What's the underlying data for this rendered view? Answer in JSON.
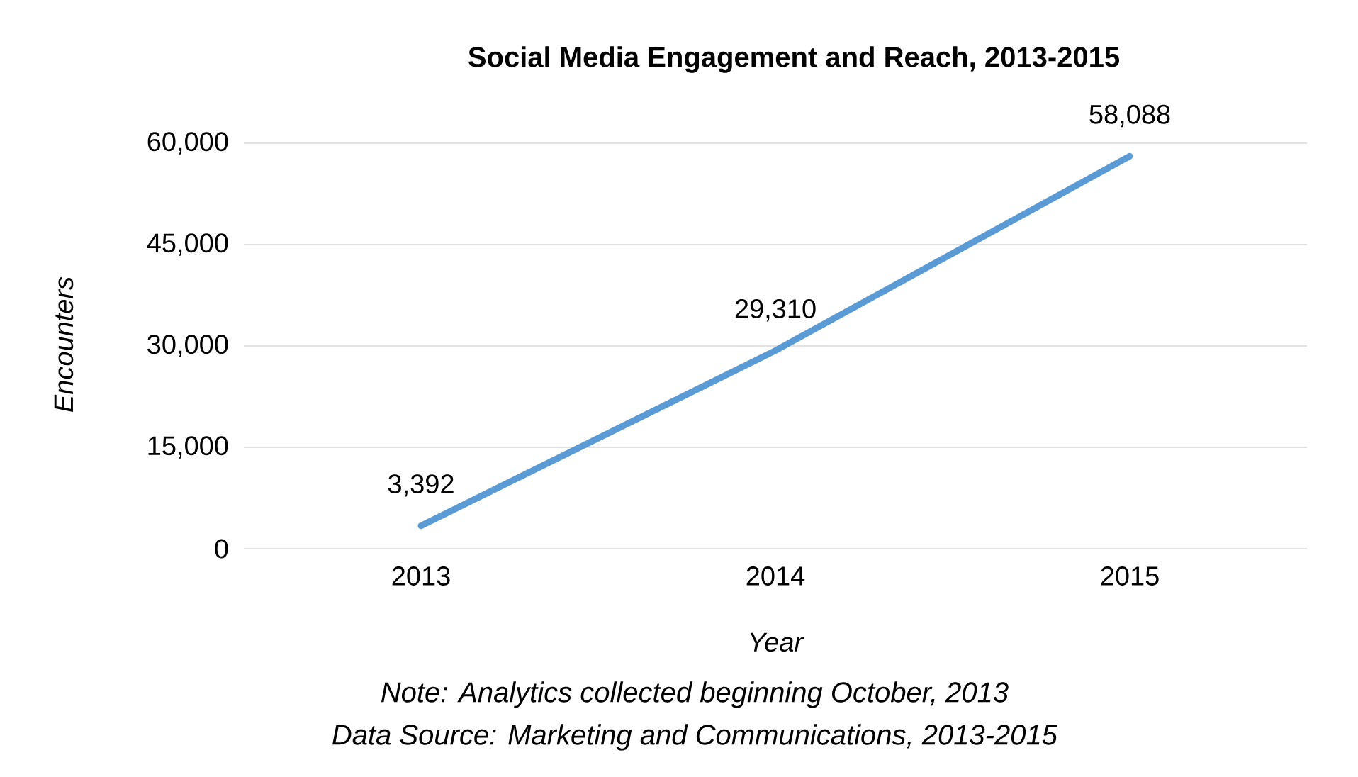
{
  "chart_data": {
    "type": "line",
    "title": "Social Media Engagement and Reach, 2013-2015",
    "xlabel": "Year",
    "ylabel": "Encounters",
    "categories": [
      "2013",
      "2014",
      "2015"
    ],
    "series": [
      {
        "color": "#5b9bd5",
        "values": [
          3392,
          29310,
          58088
        ],
        "value_labels": [
          "3,392",
          "29,310",
          "58,088"
        ]
      }
    ],
    "ylim": [
      0,
      60000
    ],
    "yticks": [
      {
        "value": 0,
        "label": "0"
      },
      {
        "value": 15000,
        "label": "15,000"
      },
      {
        "value": 30000,
        "label": "30,000"
      },
      {
        "value": 45000,
        "label": "45,000"
      },
      {
        "value": 60000,
        "label": "60,000"
      }
    ],
    "grid": "y",
    "line_style": "solid",
    "annotations": [
      "Note: Analytics collected beginning October, 2013",
      "Data Source: Marketing and Communications, 2013-2015"
    ]
  }
}
